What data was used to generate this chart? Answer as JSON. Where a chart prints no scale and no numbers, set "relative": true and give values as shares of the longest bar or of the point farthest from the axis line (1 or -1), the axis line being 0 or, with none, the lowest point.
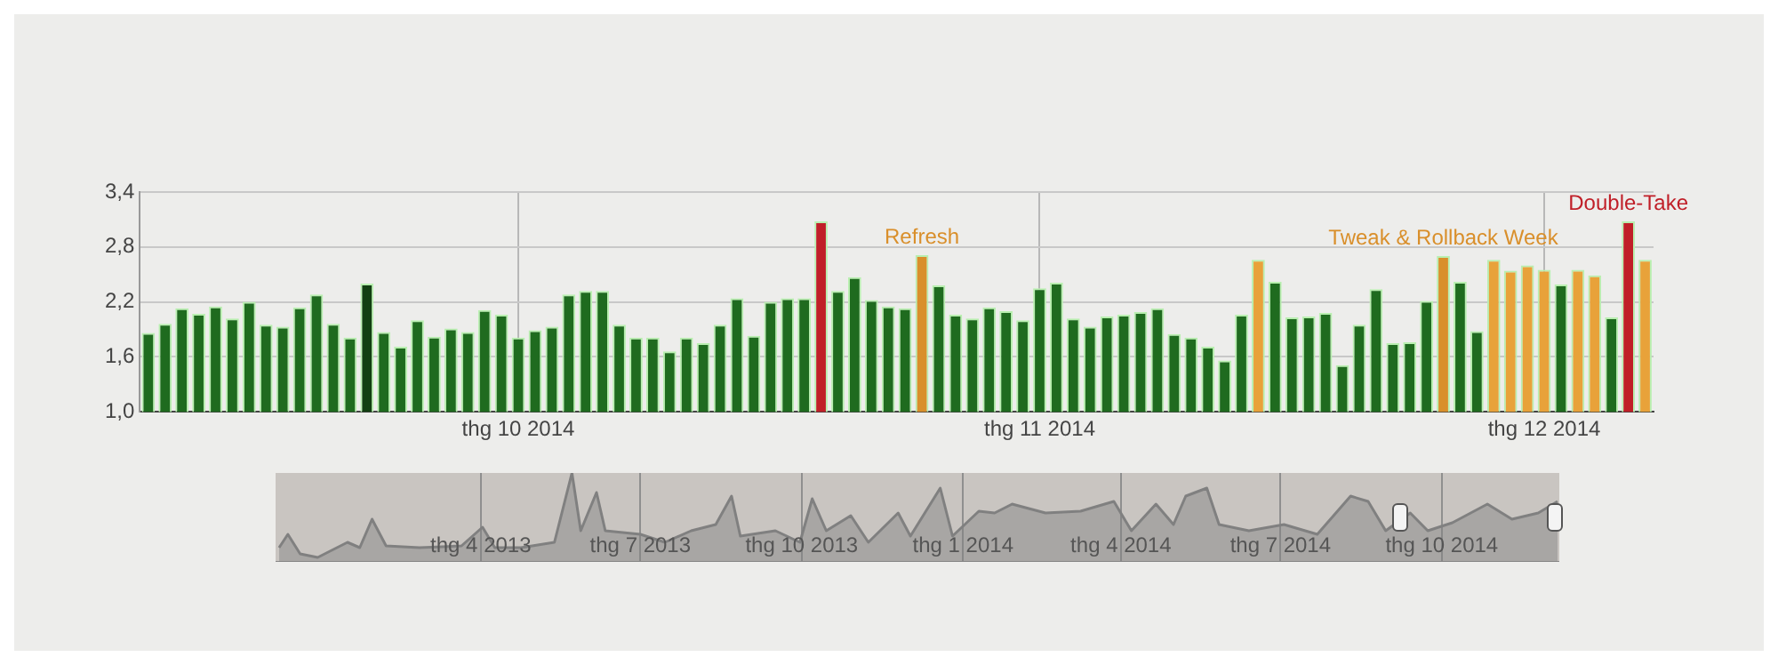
{
  "chart_data": [
    {
      "type": "bar",
      "categories": [
        null,
        null,
        null,
        null,
        null,
        null,
        null,
        null,
        null,
        null,
        null,
        null,
        null,
        null,
        null,
        null,
        null,
        null,
        null,
        null,
        null,
        null,
        "thg 10 2014",
        null,
        null,
        null,
        null,
        null,
        null,
        null,
        null,
        null,
        null,
        null,
        null,
        null,
        null,
        null,
        null,
        null,
        null,
        null,
        null,
        null,
        null,
        null,
        null,
        null,
        null,
        null,
        null,
        null,
        null,
        "thg 11 2014",
        null,
        null,
        null,
        null,
        null,
        null,
        null,
        null,
        null,
        null,
        null,
        null,
        null,
        null,
        null,
        null,
        null,
        null,
        null,
        null,
        null,
        null,
        null,
        null,
        null,
        null,
        null,
        null,
        null,
        "thg 12 2014",
        null,
        null,
        null,
        null,
        null,
        null
      ],
      "values": [
        1.86,
        1.96,
        2.13,
        2.07,
        2.15,
        2.02,
        2.2,
        1.95,
        1.93,
        2.14,
        2.28,
        1.96,
        1.81,
        2.4,
        1.87,
        1.71,
        2.0,
        1.82,
        1.91,
        1.87,
        2.11,
        2.06,
        1.81,
        1.89,
        1.93,
        2.28,
        2.32,
        2.32,
        1.95,
        1.81,
        1.81,
        1.66,
        1.81,
        1.75,
        1.95,
        2.24,
        1.83,
        2.2,
        2.24,
        2.24,
        3.08,
        2.32,
        2.47,
        2.22,
        2.15,
        2.13,
        2.71,
        2.38,
        2.06,
        2.02,
        2.14,
        2.1,
        2.0,
        2.35,
        2.41,
        2.02,
        1.93,
        2.04,
        2.06,
        2.09,
        2.13,
        1.85,
        1.81,
        1.71,
        1.56,
        2.06,
        2.66,
        2.42,
        2.03,
        2.04,
        2.08,
        1.51,
        1.95,
        2.34,
        1.75,
        1.76,
        2.21,
        2.7,
        2.42,
        1.88,
        2.66,
        2.54,
        2.6,
        2.55,
        2.39,
        2.55,
        2.49,
        2.03,
        3.08,
        2.66
      ],
      "colors": [
        "#1f6b1f",
        "#1f6b1f",
        "#1f6b1f",
        "#1f6b1f",
        "#1f6b1f",
        "#1f6b1f",
        "#1f6b1f",
        "#1f6b1f",
        "#1f6b1f",
        "#1f6b1f",
        "#1f6b1f",
        "#1f6b1f",
        "#1f6b1f",
        "#123f12",
        "#1f6b1f",
        "#1f6b1f",
        "#1f6b1f",
        "#1f6b1f",
        "#1f6b1f",
        "#1f6b1f",
        "#1f6b1f",
        "#1f6b1f",
        "#1f6b1f",
        "#1f6b1f",
        "#1f6b1f",
        "#1f6b1f",
        "#1f6b1f",
        "#1f6b1f",
        "#1f6b1f",
        "#1f6b1f",
        "#1f6b1f",
        "#1f6b1f",
        "#1f6b1f",
        "#1f6b1f",
        "#1f6b1f",
        "#1f6b1f",
        "#1f6b1f",
        "#1f6b1f",
        "#1f6b1f",
        "#1f6b1f",
        "#c01f28",
        "#1f6b1f",
        "#1f6b1f",
        "#1f6b1f",
        "#1f6b1f",
        "#1f6b1f",
        "#d98f2b",
        "#1f6b1f",
        "#1f6b1f",
        "#1f6b1f",
        "#1f6b1f",
        "#1f6b1f",
        "#1f6b1f",
        "#1f6b1f",
        "#1f6b1f",
        "#1f6b1f",
        "#1f6b1f",
        "#1f6b1f",
        "#1f6b1f",
        "#1f6b1f",
        "#1f6b1f",
        "#1f6b1f",
        "#1f6b1f",
        "#1f6b1f",
        "#1f6b1f",
        "#1f6b1f",
        "#e8a23a",
        "#1f6b1f",
        "#1f6b1f",
        "#1f6b1f",
        "#1f6b1f",
        "#1f6b1f",
        "#1f6b1f",
        "#1f6b1f",
        "#1f6b1f",
        "#1f6b1f",
        "#1f6b1f",
        "#d98f2b",
        "#1f6b1f",
        "#1f6b1f",
        "#e8a23a",
        "#e8a23a",
        "#e8a23a",
        "#e8a23a",
        "#1f6b1f",
        "#e8a23a",
        "#e8a23a",
        "#1f6b1f",
        "#c01f28",
        "#e8a23a"
      ],
      "value_labels": [
        null,
        null,
        null,
        null,
        null,
        null,
        null,
        null,
        null,
        null,
        null,
        null,
        null,
        null,
        null,
        null,
        null,
        null,
        null,
        null,
        null,
        null,
        null,
        null,
        null,
        null,
        null,
        null,
        null,
        null,
        null,
        null,
        null,
        null,
        null,
        null,
        null,
        null,
        null,
        null,
        null,
        null,
        null,
        null,
        null,
        null,
        "Refresh",
        null,
        null,
        null,
        null,
        null,
        null,
        null,
        null,
        null,
        null,
        null,
        null,
        null,
        null,
        null,
        null,
        null,
        null,
        null,
        null,
        null,
        null,
        null,
        null,
        null,
        null,
        null,
        null,
        null,
        null,
        "Tweak & Rollback Week",
        null,
        null,
        null,
        null,
        null,
        null,
        null,
        null,
        null,
        null,
        "Double-Take",
        null
      ],
      "ylim": [
        1.0,
        3.4
      ],
      "yticks": [
        {
          "value": 1.0,
          "label": "1,0"
        },
        {
          "value": 1.6,
          "label": "1,6"
        },
        {
          "value": 2.2,
          "label": "2,2"
        },
        {
          "value": 2.8,
          "label": "2,8"
        },
        {
          "value": 3.4,
          "label": "3,4"
        }
      ],
      "grid": true,
      "legend": false
    },
    {
      "type": "area",
      "relative": true,
      "color": "#808080",
      "x": [
        "2012-12-07",
        "2012-12-12",
        "2012-12-19",
        "2012-12-29",
        "2013-01-15",
        "2013-01-22",
        "2013-01-29",
        "2013-02-06",
        "2013-02-25",
        "2013-03-21",
        "2013-04-02",
        "2013-04-09",
        "2013-04-24",
        "2013-05-13",
        "2013-05-23",
        "2013-05-28",
        "2013-06-06",
        "2013-06-11",
        "2013-07-01",
        "2013-07-15",
        "2013-07-30",
        "2013-08-13",
        "2013-08-22",
        "2013-08-27",
        "2013-09-16",
        "2013-09-30",
        "2013-10-07",
        "2013-10-15",
        "2013-10-29",
        "2013-11-08",
        "2013-11-25",
        "2013-12-02",
        "2013-12-19",
        "2013-12-26",
        "2014-01-10",
        "2014-01-19",
        "2014-01-29",
        "2014-02-17",
        "2014-03-09",
        "2014-03-28",
        "2014-04-07",
        "2014-04-21",
        "2014-05-01",
        "2014-05-08",
        "2014-05-20",
        "2014-05-27",
        "2014-06-13",
        "2014-07-03",
        "2014-07-22",
        "2014-08-10",
        "2014-08-20",
        "2014-08-30",
        "2014-09-13",
        "2014-09-23",
        "2014-10-07",
        "2014-10-27",
        "2014-11-10",
        "2014-11-25",
        "2014-12-06"
      ],
      "values": [
        0.16,
        0.31,
        0.09,
        0.05,
        0.22,
        0.16,
        0.48,
        0.18,
        0.16,
        0.18,
        0.39,
        0.16,
        0.16,
        0.22,
        1.0,
        0.35,
        0.78,
        0.35,
        0.31,
        0.22,
        0.35,
        0.42,
        0.74,
        0.29,
        0.35,
        0.22,
        0.71,
        0.35,
        0.52,
        0.22,
        0.55,
        0.29,
        0.83,
        0.29,
        0.57,
        0.55,
        0.65,
        0.55,
        0.57,
        0.68,
        0.35,
        0.65,
        0.42,
        0.74,
        0.83,
        0.42,
        0.35,
        0.42,
        0.31,
        0.74,
        0.68,
        0.35,
        0.55,
        0.35,
        0.44,
        0.65,
        0.48,
        0.55,
        0.68
      ],
      "xlim": [
        "2012-12-05",
        "2014-12-07"
      ],
      "xticks": [
        {
          "value": "2013-04-01",
          "label": "thg 4 2013"
        },
        {
          "value": "2013-07-01",
          "label": "thg 7 2013"
        },
        {
          "value": "2013-10-01",
          "label": "thg 10 2013"
        },
        {
          "value": "2014-01-01",
          "label": "thg 1 2014"
        },
        {
          "value": "2014-04-01",
          "label": "thg 4 2014"
        },
        {
          "value": "2014-07-01",
          "label": "thg 7 2014"
        },
        {
          "value": "2014-10-01",
          "label": "thg 10 2014"
        }
      ],
      "grid": "x",
      "legend": false
    }
  ]
}
